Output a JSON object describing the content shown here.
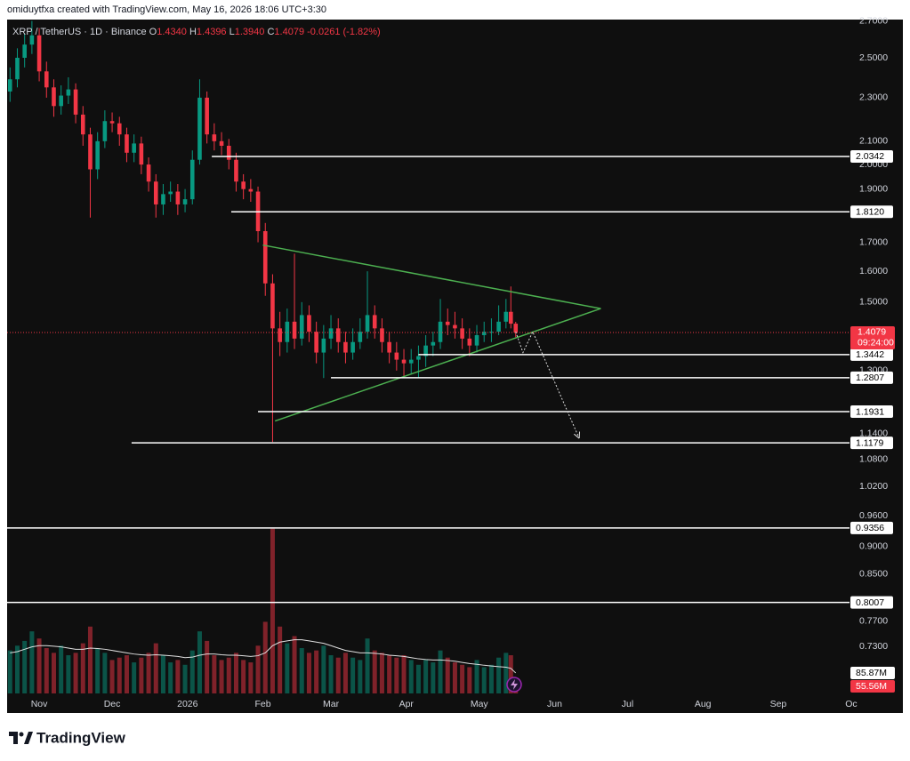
{
  "header": {
    "text": "omiduytfxa created with TradingView.com, May 16, 2026 18:06 UTC+3:30"
  },
  "brand": {
    "name": "TradingView"
  },
  "chart_data": {
    "type": "candlestick",
    "legend": {
      "symbol": "XRP / TetherUS · 1D · Binance",
      "fields": [
        {
          "key": "O",
          "value": "1.4340"
        },
        {
          "key": "H",
          "value": "1.4396"
        },
        {
          "key": "L",
          "value": "1.3940"
        },
        {
          "key": "C",
          "value": "1.4079"
        }
      ],
      "change": "-0.0261 (-1.82%)"
    },
    "log_scale": true,
    "grid": false,
    "up_color": "#089981",
    "down_color": "#f23645",
    "xlim": [
      -13.2,
      333.3
    ],
    "xticks": [
      {
        "value": 0,
        "label": "Nov"
      },
      {
        "value": 30,
        "label": "Dec"
      },
      {
        "value": 61,
        "label": "2026"
      },
      {
        "value": 92,
        "label": "Feb"
      },
      {
        "value": 120,
        "label": "Mar"
      },
      {
        "value": 151,
        "label": "Apr"
      },
      {
        "value": 181,
        "label": "May"
      },
      {
        "value": 212,
        "label": "Jun"
      },
      {
        "value": 242,
        "label": "Jul"
      },
      {
        "value": 273,
        "label": "Aug"
      },
      {
        "value": 304,
        "label": "Sep"
      },
      {
        "value": 334,
        "label": "Oc"
      }
    ],
    "ylim": [
      0.662,
      2.708
    ],
    "yticks": [
      {
        "value": 2.7,
        "label": "2.7000"
      },
      {
        "value": 2.5,
        "label": "2.5000"
      },
      {
        "value": 2.3,
        "label": "2.3000"
      },
      {
        "value": 2.1,
        "label": "2.1000"
      },
      {
        "value": 2.0,
        "label": "2.0000"
      },
      {
        "value": 1.9,
        "label": "1.9000"
      },
      {
        "value": 1.7,
        "label": "1.7000"
      },
      {
        "value": 1.6,
        "label": "1.6000"
      },
      {
        "value": 1.5,
        "label": "1.5000"
      },
      {
        "value": 1.3,
        "label": "1.3000"
      },
      {
        "value": 1.14,
        "label": "1.1400"
      },
      {
        "value": 1.08,
        "label": "1.0800"
      },
      {
        "value": 1.02,
        "label": "1.0200"
      },
      {
        "value": 0.96,
        "label": "0.9600"
      },
      {
        "value": 0.9,
        "label": "0.9000"
      },
      {
        "value": 0.85,
        "label": "0.8500"
      },
      {
        "value": 0.77,
        "label": "0.7700"
      },
      {
        "value": 0.73,
        "label": "0.7300"
      }
    ],
    "candles": [
      [
        -12,
        2.33,
        2.45,
        2.28,
        2.39
      ],
      [
        -9,
        2.39,
        2.55,
        2.35,
        2.5
      ],
      [
        -6,
        2.5,
        2.63,
        2.45,
        2.57
      ],
      [
        -3,
        2.57,
        2.7,
        2.52,
        2.62
      ],
      [
        0,
        2.62,
        2.66,
        2.38,
        2.43
      ],
      [
        3,
        2.43,
        2.48,
        2.3,
        2.35
      ],
      [
        6,
        2.35,
        2.39,
        2.21,
        2.26
      ],
      [
        9,
        2.26,
        2.36,
        2.22,
        2.31
      ],
      [
        12,
        2.31,
        2.4,
        2.27,
        2.34
      ],
      [
        15,
        2.34,
        2.37,
        2.18,
        2.22
      ],
      [
        18,
        2.22,
        2.26,
        2.08,
        2.13
      ],
      [
        21,
        2.13,
        2.16,
        1.79,
        1.98
      ],
      [
        24,
        1.98,
        2.14,
        1.94,
        2.1
      ],
      [
        27,
        2.1,
        2.24,
        2.07,
        2.19
      ],
      [
        30,
        2.19,
        2.23,
        2.14,
        2.18
      ],
      [
        33,
        2.18,
        2.21,
        2.08,
        2.13
      ],
      [
        36,
        2.13,
        2.16,
        2.01,
        2.05
      ],
      [
        39,
        2.05,
        2.13,
        2.01,
        2.09
      ],
      [
        42,
        2.09,
        2.12,
        1.96,
        2.0
      ],
      [
        45,
        2.0,
        2.03,
        1.89,
        1.93
      ],
      [
        48,
        1.93,
        1.96,
        1.79,
        1.84
      ],
      [
        51,
        1.84,
        1.92,
        1.8,
        1.88
      ],
      [
        54,
        1.88,
        1.93,
        1.85,
        1.89
      ],
      [
        57,
        1.89,
        1.92,
        1.8,
        1.84
      ],
      [
        60,
        1.84,
        1.9,
        1.81,
        1.86
      ],
      [
        63,
        1.86,
        2.06,
        1.84,
        2.02
      ],
      [
        66,
        2.02,
        2.39,
        2.0,
        2.3
      ],
      [
        69,
        2.3,
        2.33,
        2.09,
        2.13
      ],
      [
        72,
        2.13,
        2.18,
        2.06,
        2.1
      ],
      [
        75,
        2.1,
        2.14,
        2.04,
        2.08
      ],
      [
        78,
        2.08,
        2.11,
        1.98,
        2.02
      ],
      [
        81,
        2.02,
        2.05,
        1.89,
        1.93
      ],
      [
        84,
        1.93,
        1.96,
        1.86,
        1.9
      ],
      [
        87,
        1.9,
        1.94,
        1.85,
        1.89
      ],
      [
        90,
        1.89,
        1.91,
        1.7,
        1.74
      ],
      [
        93,
        1.74,
        1.77,
        1.52,
        1.56
      ],
      [
        96,
        1.56,
        1.59,
        1.12,
        1.42
      ],
      [
        99,
        1.42,
        1.47,
        1.34,
        1.38
      ],
      [
        102,
        1.38,
        1.48,
        1.35,
        1.44
      ],
      [
        105,
        1.44,
        1.66,
        1.36,
        1.39
      ],
      [
        108,
        1.39,
        1.5,
        1.37,
        1.46
      ],
      [
        111,
        1.46,
        1.49,
        1.38,
        1.41
      ],
      [
        114,
        1.41,
        1.44,
        1.32,
        1.35
      ],
      [
        117,
        1.35,
        1.43,
        1.28,
        1.39
      ],
      [
        120,
        1.39,
        1.46,
        1.36,
        1.42
      ],
      [
        123,
        1.42,
        1.45,
        1.35,
        1.38
      ],
      [
        126,
        1.38,
        1.41,
        1.32,
        1.35
      ],
      [
        129,
        1.35,
        1.42,
        1.33,
        1.38
      ],
      [
        132,
        1.38,
        1.45,
        1.36,
        1.41
      ],
      [
        135,
        1.41,
        1.6,
        1.39,
        1.46
      ],
      [
        138,
        1.46,
        1.49,
        1.39,
        1.42
      ],
      [
        141,
        1.42,
        1.45,
        1.35,
        1.38
      ],
      [
        144,
        1.38,
        1.41,
        1.32,
        1.35
      ],
      [
        147,
        1.35,
        1.38,
        1.3,
        1.33
      ],
      [
        150,
        1.33,
        1.36,
        1.28,
        1.32
      ],
      [
        153,
        1.32,
        1.36,
        1.29,
        1.33
      ],
      [
        156,
        1.33,
        1.37,
        1.28,
        1.34
      ],
      [
        159,
        1.34,
        1.4,
        1.31,
        1.37
      ],
      [
        162,
        1.37,
        1.41,
        1.34,
        1.38
      ],
      [
        165,
        1.38,
        1.51,
        1.36,
        1.44
      ],
      [
        168,
        1.44,
        1.48,
        1.4,
        1.43
      ],
      [
        171,
        1.43,
        1.47,
        1.39,
        1.42
      ],
      [
        174,
        1.42,
        1.45,
        1.36,
        1.39
      ],
      [
        177,
        1.39,
        1.42,
        1.34,
        1.37
      ],
      [
        180,
        1.37,
        1.43,
        1.35,
        1.4
      ],
      [
        183,
        1.4,
        1.44,
        1.38,
        1.41
      ],
      [
        186,
        1.41,
        1.45,
        1.38,
        1.41
      ],
      [
        189,
        1.41,
        1.49,
        1.4,
        1.44
      ],
      [
        192,
        1.44,
        1.51,
        1.42,
        1.47
      ],
      [
        194,
        1.47,
        1.55,
        1.42,
        1.434
      ],
      [
        196,
        1.434,
        1.4396,
        1.394,
        1.4079
      ]
    ],
    "vlim": [
      0,
      700
    ],
    "volume": [
      180,
      200,
      220,
      260,
      230,
      190,
      170,
      200,
      160,
      170,
      210,
      280,
      190,
      170,
      140,
      150,
      160,
      130,
      150,
      170,
      210,
      160,
      130,
      140,
      120,
      180,
      260,
      220,
      160,
      140,
      150,
      170,
      140,
      130,
      200,
      300,
      690,
      280,
      210,
      240,
      190,
      170,
      180,
      200,
      160,
      150,
      170,
      150,
      140,
      230,
      180,
      170,
      160,
      150,
      160,
      140,
      120,
      140,
      130,
      180,
      150,
      130,
      120,
      110,
      140,
      110,
      120,
      150,
      170,
      160,
      55.56
    ],
    "volume_ma": [
      170,
      175,
      185,
      195,
      200,
      200,
      198,
      195,
      190,
      185,
      185,
      190,
      188,
      185,
      180,
      175,
      170,
      165,
      162,
      160,
      162,
      160,
      158,
      155,
      150,
      152,
      160,
      165,
      165,
      162,
      160,
      160,
      158,
      155,
      158,
      170,
      200,
      215,
      220,
      225,
      225,
      220,
      215,
      210,
      200,
      190,
      180,
      175,
      170,
      170,
      168,
      165,
      160,
      158,
      155,
      150,
      145,
      142,
      140,
      140,
      138,
      135,
      130,
      125,
      122,
      118,
      115,
      112,
      110,
      105,
      85.87
    ],
    "volume_labels": [
      {
        "value": 85.87,
        "label": "85.87M"
      },
      {
        "value": 55.56,
        "label": "55.56M"
      }
    ],
    "last_price": {
      "value": 1.4079,
      "label": "1.4079",
      "countdown": "09:24:00"
    },
    "levels": [
      {
        "value": 2.0342,
        "label": "2.0342",
        "x": 71
      },
      {
        "value": 1.812,
        "label": "1.8120",
        "x": 79
      },
      {
        "value": 1.3442,
        "label": "1.3442",
        "x": 156
      },
      {
        "value": 1.2807,
        "label": "1.2807",
        "x": 120
      },
      {
        "value": 1.1931,
        "label": "1.1931",
        "x": 90
      },
      {
        "value": 1.1179,
        "label": "1.1179",
        "x": 38
      },
      {
        "value": 0.9356,
        "label": "0.9356",
        "x": -13.2
      },
      {
        "value": 0.8007,
        "label": "0.8007",
        "x": -13.2
      }
    ],
    "trendlines": [
      {
        "x": [
          92,
          231
        ],
        "y": [
          1.69,
          1.48
        ],
        "color": "#4caf50"
      },
      {
        "x": [
          97,
          231
        ],
        "y": [
          1.17,
          1.48
        ],
        "color": "#4caf50"
      }
    ],
    "projection": {
      "x": [
        196,
        199,
        203,
        222
      ],
      "y": [
        1.41,
        1.35,
        1.41,
        1.13
      ]
    }
  }
}
